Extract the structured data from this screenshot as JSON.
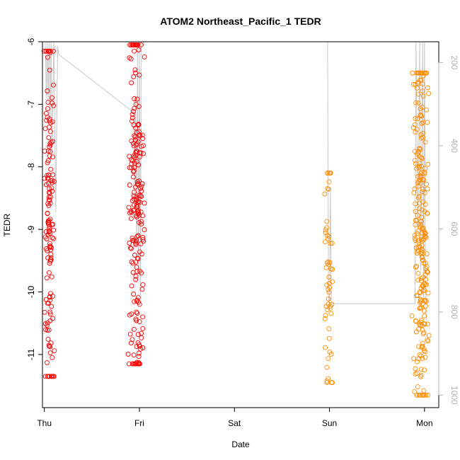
{
  "chart_data": {
    "type": "scatter",
    "title": "ATOM2 Northeast_Pacific_1 TEDR",
    "xlabel": "Date",
    "ylabel": "TEDR",
    "x_ticks": [
      "Thu",
      "Fri",
      "Sat",
      "Sun",
      "Mon"
    ],
    "y_ticks": [
      "-6",
      "-7",
      "-8",
      "-9",
      "-10",
      "-11"
    ],
    "y2_ticks": [
      "200",
      "400",
      "600",
      "800",
      "1000"
    ],
    "ylim": [
      -11.85,
      -6.0
    ],
    "y2lim": [
      150,
      1030
    ],
    "y2_inverted": true,
    "xlim_days": [
      -0.02,
      4.15
    ],
    "grid": false,
    "colors": {
      "early": "#ff0000",
      "late": "#ff8c00",
      "track": "#c8c8c8",
      "axis": "#000000",
      "right_axis": "#b3b3b3"
    },
    "series": [
      {
        "color_key": "early",
        "clusters": [
          {
            "x_center": 0.05,
            "x_spread": 0.06,
            "y_min": -11.35,
            "y_max": -6.15,
            "n": 150
          },
          {
            "x_center": 0.97,
            "x_spread": 0.09,
            "y_min": -11.15,
            "y_max": -6.05,
            "n": 210
          }
        ]
      },
      {
        "color_key": "late",
        "clusters": [
          {
            "x_center": 2.99,
            "x_spread": 0.05,
            "y_min": -11.45,
            "y_max": -8.1,
            "n": 55
          },
          {
            "x_center": 3.96,
            "x_spread": 0.1,
            "y_min": -11.65,
            "y_max": -6.5,
            "n": 260
          }
        ]
      }
    ],
    "depth_track": [
      [
        0.01,
        150
      ],
      [
        0.02,
        285
      ],
      [
        0.03,
        150
      ],
      [
        0.04,
        300
      ],
      [
        0.05,
        150
      ],
      [
        0.06,
        330
      ],
      [
        0.07,
        150
      ],
      [
        0.08,
        420
      ],
      [
        0.1,
        150
      ],
      [
        0.12,
        560
      ],
      [
        0.14,
        160
      ],
      [
        0.15,
        180
      ],
      [
        0.94,
        320
      ],
      [
        0.95,
        520
      ],
      [
        0.96,
        280
      ],
      [
        0.97,
        640
      ],
      [
        0.98,
        170
      ],
      [
        0.99,
        700
      ],
      [
        1.0,
        150
      ],
      [
        1.01,
        760
      ],
      [
        1.02,
        160
      ],
      [
        1.05,
        150
      ],
      [
        1.4,
        150
      ],
      [
        2.98,
        150
      ],
      [
        2.99,
        760
      ],
      [
        3.0,
        790
      ],
      [
        3.01,
        500
      ],
      [
        3.02,
        780
      ],
      [
        3.9,
        780
      ],
      [
        3.91,
        150
      ],
      [
        3.93,
        600
      ],
      [
        3.95,
        150
      ],
      [
        3.96,
        700
      ],
      [
        3.98,
        150
      ],
      [
        3.99,
        780
      ],
      [
        4.0,
        150
      ],
      [
        4.01,
        720
      ],
      [
        4.02,
        820
      ]
    ]
  }
}
